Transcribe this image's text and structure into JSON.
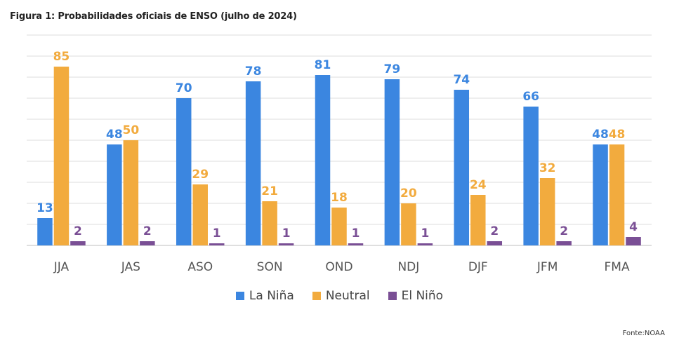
{
  "figure_title": "Figura 1: Probabilidades oficiais de ENSO (julho de 2024)",
  "source": "Fonte:NOAA",
  "colors": {
    "la_nina": "#3b86e0",
    "neutral": "#f2ab3e",
    "el_nino": "#7a4f95",
    "grid": "#e3e3e3",
    "axis": "#cccccc"
  },
  "chart_data": {
    "type": "bar",
    "title": "",
    "xlabel": "",
    "ylabel": "",
    "ylim": [
      0,
      100
    ],
    "grid": true,
    "legend_position": "bottom",
    "categories": [
      "JJA",
      "JAS",
      "ASO",
      "SON",
      "OND",
      "NDJ",
      "DJF",
      "JFM",
      "FMA"
    ],
    "series": [
      {
        "name": "La Niña",
        "color": "#3b86e0",
        "values": [
          13,
          48,
          70,
          78,
          81,
          79,
          74,
          66,
          48
        ]
      },
      {
        "name": "Neutral",
        "color": "#f2ab3e",
        "values": [
          85,
          50,
          29,
          21,
          18,
          20,
          24,
          32,
          48
        ]
      },
      {
        "name": "El Niño",
        "color": "#7a4f95",
        "values": [
          2,
          2,
          1,
          1,
          1,
          1,
          2,
          2,
          4
        ]
      }
    ]
  }
}
